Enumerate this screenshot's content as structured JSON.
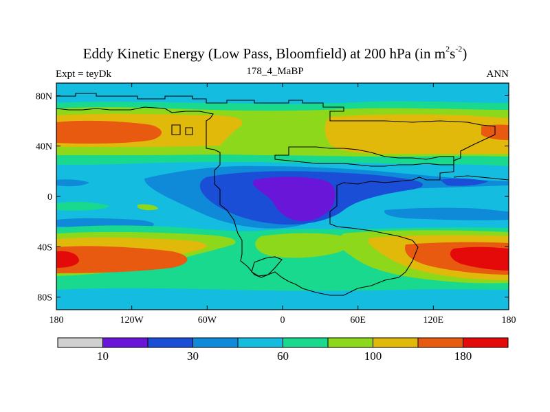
{
  "chart_data": {
    "type": "heatmap",
    "title_main": "Eddy Kinetic Energy (Low Pass, Bloomfield) at 200 hPa (in m",
    "title_sup1": "2",
    "title_mid": "s",
    "title_sup2": "-2",
    "title_close": ")",
    "left_label": "Expt = teyDk",
    "center_label": "178_4_MaBP",
    "right_label": "ANN",
    "x_ticks": [
      "180",
      "120W",
      "60W",
      "0",
      "60E",
      "120E",
      "180"
    ],
    "x_tick_lons": [
      -180,
      -120,
      -60,
      0,
      60,
      120,
      180
    ],
    "y_ticks": [
      "80N",
      "40N",
      "0",
      "40S",
      "80S"
    ],
    "y_tick_lats": [
      80,
      40,
      0,
      -40,
      -80
    ],
    "xlim": [
      -180,
      180
    ],
    "ylim": [
      -90,
      90
    ],
    "colorbar_labels": [
      "10",
      "30",
      "60",
      "100",
      "180"
    ],
    "colorbar_label_boundary_index": [
      1,
      3,
      5,
      7,
      9
    ],
    "levels": [
      10,
      20,
      30,
      40,
      60,
      80,
      100,
      140,
      180
    ],
    "colors": [
      "#d0d0d0",
      "#6a16d8",
      "#1b4ed6",
      "#0f8ad8",
      "#14bde0",
      "#19d98f",
      "#8ed81b",
      "#e1b90b",
      "#e85a10",
      "#e40a0a"
    ]
  }
}
